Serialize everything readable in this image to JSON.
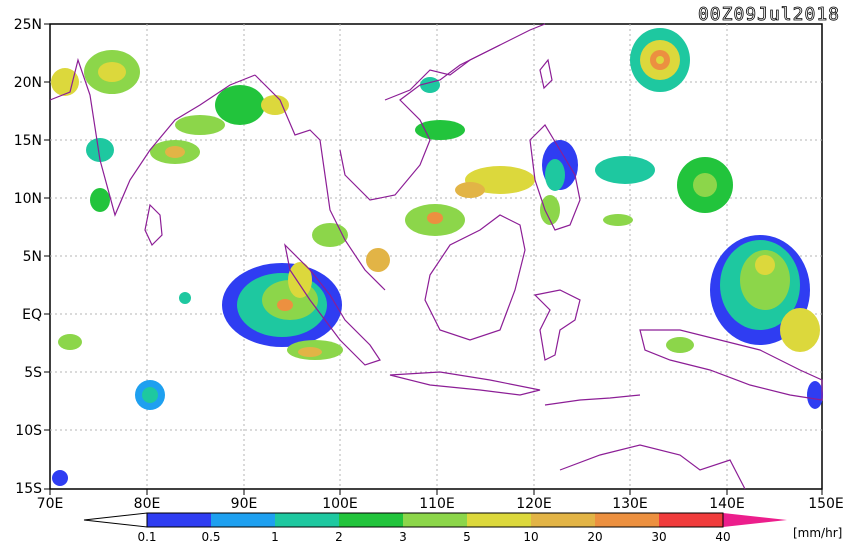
{
  "title": "00Z09Jul2018",
  "units_label": "[mm/hr]",
  "lat_labels": [
    "25N",
    "20N",
    "15N",
    "10N",
    "5N",
    "EQ",
    "5S",
    "10S",
    "15S"
  ],
  "lon_labels": [
    "70E",
    "80E",
    "90E",
    "100E",
    "110E",
    "120E",
    "130E",
    "140E",
    "150E"
  ],
  "legend": {
    "colors": [
      "#2f3df2",
      "#1ea0f0",
      "#1ec8a0",
      "#22c43c",
      "#8cd64a",
      "#dcd83c",
      "#e2b446",
      "#ec9040",
      "#f03c3c",
      "#ec1e8c"
    ],
    "labels": [
      "0.1",
      "0.5",
      "1",
      "2",
      "3",
      "5",
      "10",
      "20",
      "30",
      "40"
    ]
  },
  "map": {
    "lon_range": [
      70,
      150
    ],
    "lat_range": [
      -15,
      25
    ],
    "grid": true,
    "coastline_color": "#8c1e96"
  }
}
